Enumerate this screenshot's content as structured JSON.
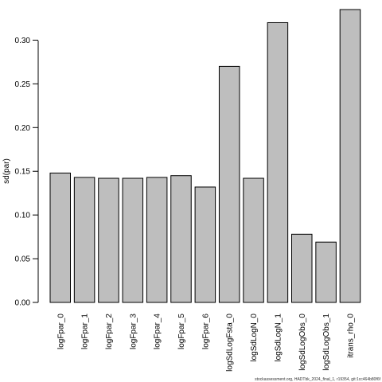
{
  "chart_data": {
    "type": "bar",
    "categories": [
      "logFpar_0",
      "logFpar_1",
      "logFpar_2",
      "logFpar_3",
      "logFpar_4",
      "logFpar_5",
      "logFpar_6",
      "logSdLogFsta_0",
      "logSdLogN_0",
      "logSdLogN_1",
      "logSdLogObs_0",
      "logSdLogObs_1",
      "itrans_rho_0"
    ],
    "values": [
      0.148,
      0.143,
      0.142,
      0.142,
      0.143,
      0.145,
      0.132,
      0.27,
      0.142,
      0.32,
      0.078,
      0.069,
      0.335
    ],
    "title": "",
    "xlabel": "",
    "ylabel": "sd(par)",
    "ylim": [
      0,
      0.335
    ],
    "yticks": [
      "0.00",
      "0.05",
      "0.10",
      "0.15",
      "0.20",
      "0.25",
      "0.30"
    ],
    "grid": false,
    "bar_color": "#bebebe",
    "edge_color": "#000000"
  },
  "footer": {
    "note": "stockassessment.org, HADTbk_2024_final_1, r19354, git:1cc464b80f6f"
  }
}
